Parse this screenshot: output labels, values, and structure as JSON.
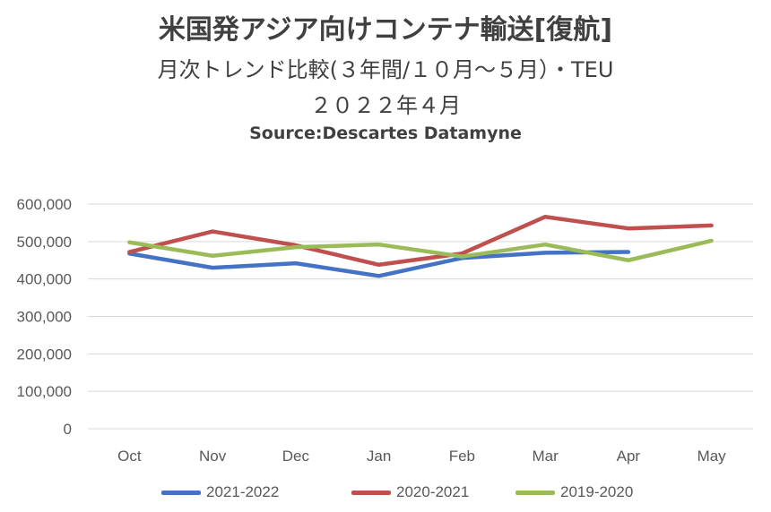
{
  "chart_data": {
    "type": "line",
    "title": "米国発アジア向けコンテナ輸送[復航]",
    "subtitle": "月次トレンド比較(３年間/１０月～５月）・TEU",
    "subtitle2": "２０２２年４月",
    "source": "Source:Descartes Datamyne",
    "categories": [
      "Oct",
      "Nov",
      "Dec",
      "Jan",
      "Feb",
      "Mar",
      "Apr",
      "May"
    ],
    "yticks": [
      "0",
      "100,000",
      "200,000",
      "300,000",
      "400,000",
      "500,000",
      "600,000"
    ],
    "ylim": [
      0,
      600000
    ],
    "grid": true,
    "legend_position": "bottom",
    "series": [
      {
        "name": "2021-2022",
        "color": "#4472C4",
        "values": [
          468000,
          430000,
          442000,
          408000,
          456000,
          470000,
          472000,
          null
        ]
      },
      {
        "name": "2020-2021",
        "color": "#C0504D",
        "values": [
          472000,
          527000,
          490000,
          438000,
          468000,
          566000,
          535000,
          543000
        ]
      },
      {
        "name": "2019-2020",
        "color": "#9BBB59",
        "values": [
          498000,
          462000,
          485000,
          492000,
          460000,
          492000,
          450000,
          502000
        ]
      }
    ]
  }
}
